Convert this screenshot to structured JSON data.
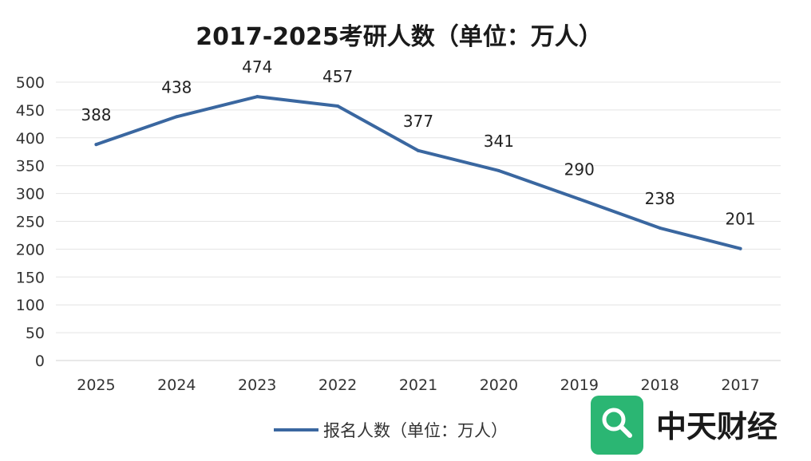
{
  "chart_data": {
    "type": "line",
    "title": "2017-2025考研人数（单位：万人）",
    "categories": [
      "2025",
      "2024",
      "2023",
      "2022",
      "2021",
      "2020",
      "2019",
      "2018",
      "2017"
    ],
    "series": [
      {
        "name": "报名人数（单位：万人）",
        "values": [
          388,
          438,
          474,
          457,
          377,
          341,
          290,
          238,
          201
        ],
        "color": "#3a67a0"
      }
    ],
    "ylim": [
      0,
      500
    ],
    "yticks": [
      0,
      50,
      100,
      150,
      200,
      250,
      300,
      350,
      400,
      450,
      500
    ],
    "grid": true,
    "legend": "bottom"
  },
  "watermark": {
    "text": "中天财经",
    "icon": "search-icon",
    "color": "#2bb673"
  }
}
